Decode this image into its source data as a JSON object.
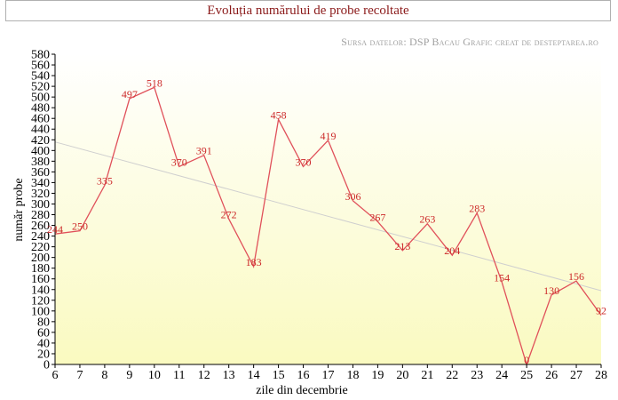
{
  "header": {
    "title": "Evoluția numărului de probe recoltate",
    "source": "Sursa datelor: DSP Bacau Grafic creat de desteptarea.ro"
  },
  "colors": {
    "line": "#e0505a",
    "label": "#cc2a2a",
    "trend": "#cfcfcf",
    "bg_top": "#ffffff",
    "bg_bottom": "#fafac0"
  },
  "chart_data": {
    "type": "line",
    "title": "Evoluția numărului de probe recoltate",
    "xlabel": "zile din decembrie",
    "ylabel": "număr probe",
    "xlim": [
      6,
      28
    ],
    "ylim": [
      0,
      580
    ],
    "x_ticks": [
      6,
      7,
      8,
      9,
      10,
      11,
      12,
      13,
      14,
      15,
      16,
      17,
      18,
      19,
      20,
      21,
      22,
      23,
      24,
      25,
      26,
      27,
      28
    ],
    "y_ticks": [
      0,
      20,
      40,
      60,
      80,
      100,
      120,
      140,
      160,
      180,
      200,
      220,
      240,
      260,
      280,
      300,
      320,
      340,
      360,
      380,
      400,
      420,
      440,
      460,
      480,
      500,
      520,
      540,
      560,
      580
    ],
    "grid": false,
    "series": [
      {
        "x": [
          6,
          7,
          8,
          9,
          10,
          11,
          12,
          13,
          14,
          15,
          16,
          17,
          18,
          19,
          20,
          21,
          22,
          23,
          24,
          25,
          26,
          27,
          28
        ],
        "values": [
          244,
          250,
          335,
          497,
          518,
          370,
          391,
          272,
          183,
          458,
          370,
          419,
          306,
          267,
          213,
          263,
          204,
          283,
          154,
          0,
          130,
          156,
          92
        ],
        "labels": [
          "244",
          "250",
          "335",
          "497",
          "518",
          "370",
          "391",
          "272",
          "183",
          "458",
          "370",
          "419",
          "306",
          "267",
          "213",
          "263",
          "204",
          "283",
          "154",
          "0",
          "130",
          "156",
          "92"
        ]
      }
    ],
    "trendline": {
      "x": [
        6,
        28
      ],
      "values": [
        416,
        138
      ]
    }
  }
}
